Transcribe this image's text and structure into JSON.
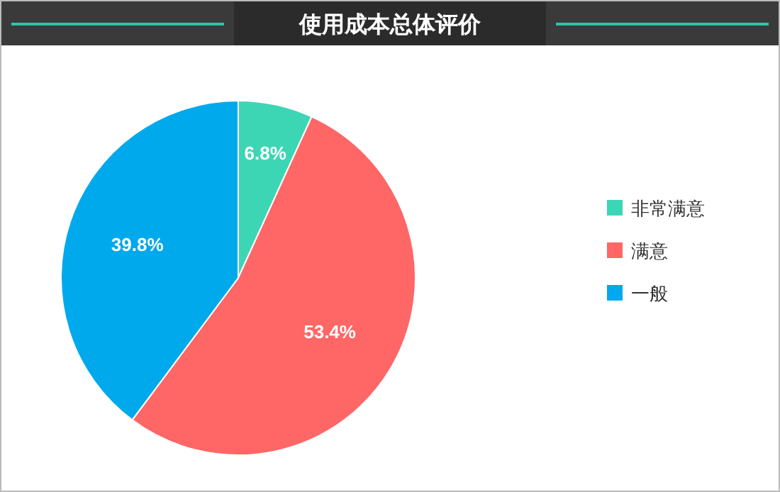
{
  "chart_data": {
    "type": "pie",
    "title": "使用成本总体评价",
    "categories": [
      "非常满意",
      "满意",
      "一般"
    ],
    "values": [
      6.8,
      53.4,
      39.8
    ],
    "colors": [
      "#3dd6b5",
      "#ff6666",
      "#00a9ec"
    ],
    "value_labels": [
      "6.8%",
      "53.4%",
      "39.8%"
    ],
    "legend": "right"
  }
}
